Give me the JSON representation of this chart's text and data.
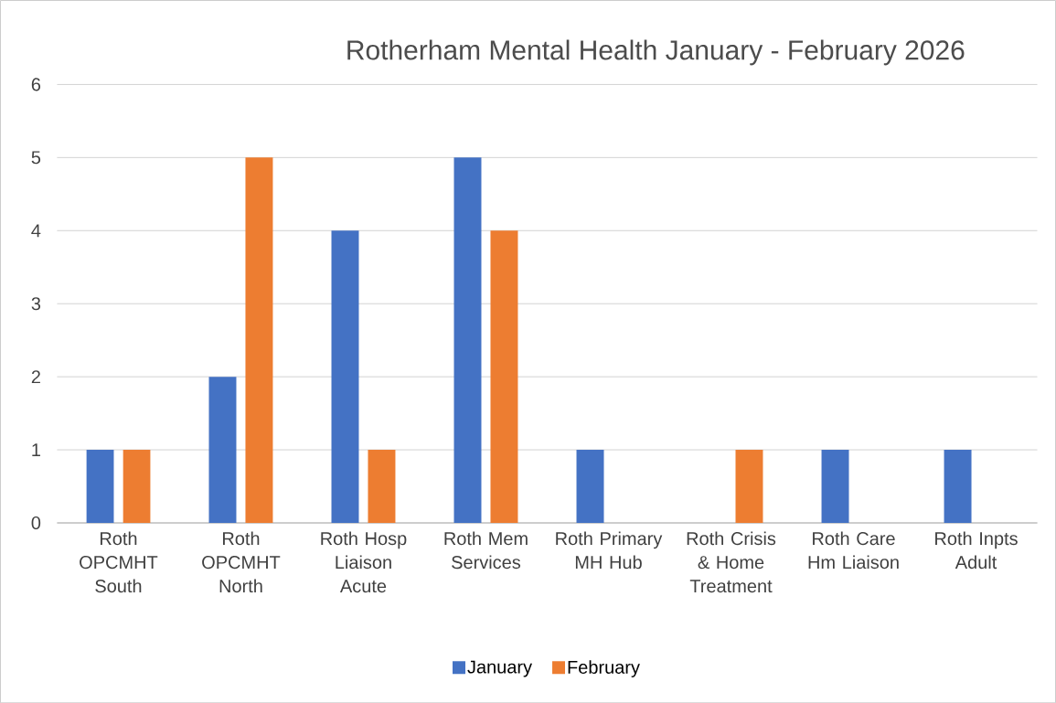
{
  "chart_data": {
    "type": "bar",
    "title": "Rotherham Mental Health January - February 2026",
    "categories": [
      "Roth OPCMHT South",
      "Roth OPCMHT North",
      "Roth Hosp Liaison Acute",
      "Roth Mem Services",
      "Roth Primary MH Hub",
      "Roth Crisis & Home Treatment",
      "Roth Care Hm Liaison",
      "Roth Inpts Adult"
    ],
    "series": [
      {
        "name": "January",
        "color": "#4472c4",
        "values": [
          1,
          2,
          4,
          5,
          1,
          0,
          1,
          1
        ]
      },
      {
        "name": "February",
        "color": "#ed7d31",
        "values": [
          1,
          5,
          1,
          4,
          0,
          1,
          0,
          0
        ]
      }
    ],
    "ylim": [
      0,
      6
    ],
    "yticks": [
      0,
      1,
      2,
      3,
      4,
      5,
      6
    ],
    "grid": "y",
    "legend": "bottom"
  }
}
